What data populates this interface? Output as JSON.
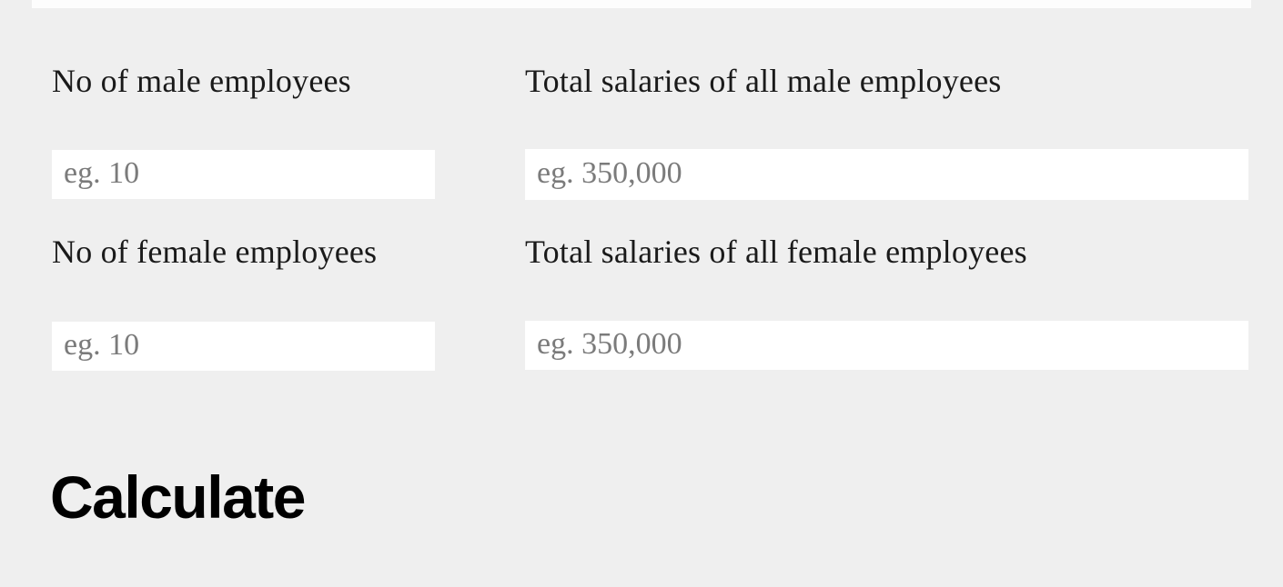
{
  "page": {
    "colors": {
      "background": "#efefef",
      "input_background": "#ffffff",
      "label_text": "#1a1a1a",
      "placeholder_text": "#7b7b7b",
      "button_text": "#000000",
      "top_strip": "#fdfdfd"
    }
  },
  "form": {
    "fields": [
      {
        "id": "male-count",
        "label": "No of male employees",
        "value": "",
        "placeholder": "eg. 10"
      },
      {
        "id": "male-salary",
        "label": "Total salaries of all male employees",
        "value": "",
        "placeholder": "eg. 350,000"
      },
      {
        "id": "female-count",
        "label": "No of female employees",
        "value": "",
        "placeholder": "eg. 10"
      },
      {
        "id": "female-salary",
        "label": "Total salaries of all female employees",
        "value": "",
        "placeholder": "eg. 350,000"
      }
    ],
    "submit_label": "Calculate"
  }
}
